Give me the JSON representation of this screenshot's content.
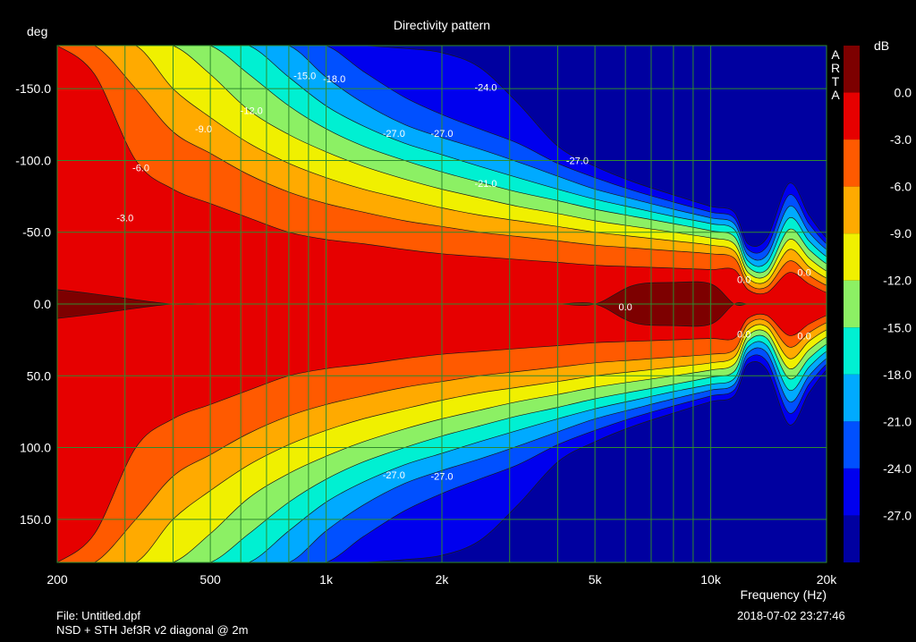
{
  "chart_data": {
    "type": "heatmap",
    "subtype": "filled-contour",
    "title": "Directivity pattern",
    "ylabel": "deg",
    "xlabel": "Frequency (Hz)",
    "x_scale": "log",
    "xlim": [
      200,
      20000
    ],
    "ylim": [
      -180,
      180
    ],
    "y_direction": "negative at top",
    "grid": true,
    "x_tick_labels": [
      {
        "value": 200,
        "label": "200"
      },
      {
        "value": 500,
        "label": "500"
      },
      {
        "value": 1000,
        "label": "1k"
      },
      {
        "value": 2000,
        "label": "2k"
      },
      {
        "value": 5000,
        "label": "5k"
      },
      {
        "value": 10000,
        "label": "10k"
      },
      {
        "value": 20000,
        "label": "20k"
      }
    ],
    "y_tick_labels": [
      {
        "value": -150,
        "label": "-150.0"
      },
      {
        "value": -100,
        "label": "-100.0"
      },
      {
        "value": -50,
        "label": "-50.0"
      },
      {
        "value": 0,
        "label": "0.0"
      },
      {
        "value": 50,
        "label": "50.0"
      },
      {
        "value": 100,
        "label": "100.0"
      },
      {
        "value": 150,
        "label": "150.0"
      }
    ],
    "colorbar": {
      "unit": "dB",
      "labels": [
        "0.0",
        "-3.0",
        "-6.0",
        "-9.0",
        "-12.0",
        "-15.0",
        "-18.0",
        "-21.0",
        "-24.0",
        "-27.0"
      ],
      "bands": [
        {
          "from": 3,
          "to": 0,
          "color": "#7d0000"
        },
        {
          "from": 0,
          "to": -3,
          "color": "#e60000"
        },
        {
          "from": -3,
          "to": -6,
          "color": "#ff5a00"
        },
        {
          "from": -6,
          "to": -9,
          "color": "#ffaa00"
        },
        {
          "from": -9,
          "to": -12,
          "color": "#f0f000"
        },
        {
          "from": -12,
          "to": -15,
          "color": "#8cf064"
        },
        {
          "from": -15,
          "to": -18,
          "color": "#00f0d2"
        },
        {
          "from": -18,
          "to": -21,
          "color": "#00aaff"
        },
        {
          "from": -21,
          "to": -24,
          "color": "#0050ff"
        },
        {
          "from": -24,
          "to": -27,
          "color": "#0000ee"
        },
        {
          "from": -27,
          "to": -30,
          "color": "#0000a0"
        }
      ]
    },
    "half_width_deg_by_level": {
      "freq_hz": [
        200,
        250,
        320,
        400,
        500,
        630,
        800,
        1000,
        1250,
        1600,
        2000,
        2500,
        3150,
        4000,
        5000,
        6300,
        8000,
        10000,
        11500,
        12500,
        14000,
        16000,
        18000,
        20000
      ],
      "levels": [
        {
          "level": "0.0",
          "half_width_deg": [
            10,
            7,
            3,
            0,
            0,
            0,
            0,
            0,
            0,
            0,
            0,
            0,
            0,
            0,
            0,
            13,
            15,
            14,
            0,
            0,
            0,
            0,
            0,
            0
          ]
        },
        {
          "level": "-3.0",
          "half_width_deg": [
            180,
            160,
            100,
            80,
            70,
            60,
            50,
            45,
            42,
            38,
            35,
            33,
            31,
            29,
            27,
            26,
            25,
            24,
            24,
            10,
            8,
            22,
            14,
            8
          ]
        },
        {
          "level": "-6.0",
          "half_width_deg": [
            180,
            180,
            150,
            120,
            105,
            90,
            78,
            70,
            64,
            58,
            54,
            50,
            47,
            44,
            41,
            39,
            37,
            35,
            32,
            14,
            12,
            30,
            20,
            13
          ]
        },
        {
          "level": "-9.0",
          "half_width_deg": [
            180,
            180,
            180,
            150,
            130,
            112,
            98,
            88,
            80,
            73,
            67,
            62,
            58,
            54,
            50,
            47,
            44,
            41,
            37,
            18,
            16,
            38,
            26,
            18
          ]
        },
        {
          "level": "-12.0",
          "half_width_deg": [
            180,
            180,
            180,
            180,
            160,
            135,
            118,
            106,
            96,
            87,
            80,
            74,
            68,
            63,
            58,
            54,
            50,
            46,
            42,
            22,
            20,
            45,
            32,
            23
          ]
        },
        {
          "level": "-15.0",
          "half_width_deg": [
            180,
            180,
            180,
            180,
            180,
            160,
            138,
            122,
            110,
            100,
            92,
            85,
            78,
            72,
            66,
            61,
            56,
            51,
            47,
            26,
            24,
            52,
            38,
            28
          ]
        },
        {
          "level": "-18.0",
          "half_width_deg": [
            180,
            180,
            180,
            180,
            180,
            180,
            158,
            138,
            124,
            112,
            104,
            96,
            88,
            80,
            73,
            67,
            61,
            56,
            52,
            30,
            29,
            60,
            44,
            33
          ]
        },
        {
          "level": "-21.0",
          "half_width_deg": [
            180,
            180,
            180,
            180,
            180,
            180,
            180,
            158,
            140,
            125,
            116,
            108,
            99,
            89,
            80,
            73,
            66,
            60,
            56,
            34,
            34,
            68,
            50,
            38
          ]
        },
        {
          "level": "-24.0",
          "half_width_deg": [
            180,
            180,
            180,
            180,
            180,
            180,
            180,
            180,
            162,
            144,
            132,
            122,
            112,
            98,
            88,
            79,
            71,
            64,
            60,
            38,
            40,
            76,
            56,
            42
          ]
        },
        {
          "level": "-27.0",
          "half_width_deg": [
            180,
            180,
            180,
            180,
            180,
            180,
            180,
            180,
            180,
            178,
            175,
            165,
            140,
            110,
            96,
            85,
            76,
            68,
            64,
            42,
            46,
            84,
            62,
            46
          ]
        }
      ]
    },
    "annotations": [
      {
        "text": "0.0",
        "freq_hz": 6000,
        "deg": 2
      },
      {
        "text": "0.0",
        "freq_hz": 12200,
        "deg": -17
      },
      {
        "text": "0.0",
        "freq_hz": 17500,
        "deg": -22
      },
      {
        "text": "0.0",
        "freq_hz": 12200,
        "deg": 21
      },
      {
        "text": "0.0",
        "freq_hz": 17500,
        "deg": 22
      },
      {
        "text": "-3.0",
        "freq_hz": 300,
        "deg": -60
      },
      {
        "text": "-6.0",
        "freq_hz": 330,
        "deg": -95
      },
      {
        "text": "-9.0",
        "freq_hz": 480,
        "deg": -122
      },
      {
        "text": "-12.0",
        "freq_hz": 640,
        "deg": -135
      },
      {
        "text": "-15.0",
        "freq_hz": 880,
        "deg": -159
      },
      {
        "text": "-18.0",
        "freq_hz": 1050,
        "deg": -157
      },
      {
        "text": "-24.0",
        "freq_hz": 2600,
        "deg": -151
      },
      {
        "text": "-27.0",
        "freq_hz": 1500,
        "deg": -119
      },
      {
        "text": "-27.0",
        "freq_hz": 2000,
        "deg": -119
      },
      {
        "text": "-27.0",
        "freq_hz": 4500,
        "deg": -100
      },
      {
        "text": "-21.0",
        "freq_hz": 2600,
        "deg": -84
      },
      {
        "text": "-27.0",
        "freq_hz": 1500,
        "deg": 119
      },
      {
        "text": "-27.0",
        "freq_hz": 2000,
        "deg": 120
      }
    ]
  },
  "brand": "ARTA",
  "footer": {
    "file": "File: Untitled.dpf",
    "description": "NSD + STH Jef3R v2 diagonal @ 2m",
    "timestamp": "2018-07-02  23:27:46"
  }
}
